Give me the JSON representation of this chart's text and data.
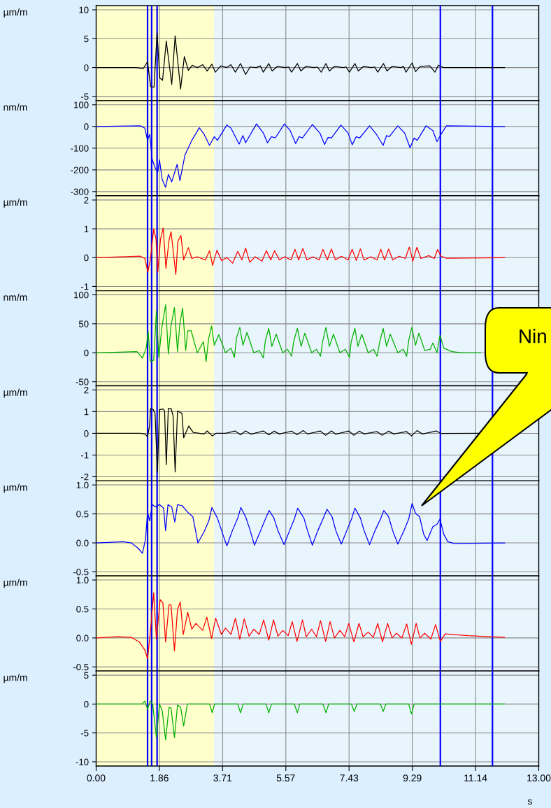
{
  "chart_data": [
    {
      "type": "line",
      "ylabel": "µm/m",
      "xlim": [
        0,
        13
      ],
      "xticks": [
        0,
        1.857,
        3.714,
        5.571,
        7.429,
        9.286,
        11.143,
        13
      ],
      "ylim": [
        -5.73,
        10.73
      ],
      "yticks": [
        10,
        5,
        0,
        -5
      ],
      "grid": true,
      "tick_labels": "y",
      "bands": [
        {
          "axis": "x",
          "from": 0,
          "to": 3.46,
          "color": "#ffffcc"
        }
      ],
      "ref_lines": [
        {
          "axis": "x",
          "value": 1.51,
          "color": "#0000ff"
        },
        {
          "axis": "x",
          "value": 1.63,
          "color": "#0000ff"
        },
        {
          "axis": "x",
          "value": 1.79,
          "color": "#0000ff"
        },
        {
          "axis": "x",
          "value": 10.11,
          "color": "#0000ff"
        },
        {
          "axis": "x",
          "value": 11.64,
          "color": "#0000ff"
        }
      ],
      "series": [
        {
          "color": "#000000",
          "x": [
            0,
            1.18,
            1.38,
            1.51,
            1.6,
            1.7,
            1.79,
            1.87,
            1.95,
            2.06,
            2.22,
            2.32,
            2.48,
            2.59,
            2.71,
            2.82,
            2.97,
            3.13,
            3.26,
            3.4,
            3.5,
            3.66,
            3.84,
            3.96,
            4.09,
            4.24,
            4.39,
            4.52,
            4.7,
            4.82,
            4.91,
            5.07,
            5.17,
            5.32,
            5.55,
            5.65,
            5.74,
            5.91,
            6.01,
            6.16,
            6.4,
            6.5,
            6.61,
            6.75,
            6.85,
            7.0,
            7.25,
            7.34,
            7.44,
            7.6,
            7.7,
            7.85,
            8.08,
            8.18,
            8.27,
            8.44,
            8.54,
            8.69,
            8.95,
            9.03,
            9.1,
            9.28,
            9.38,
            9.52,
            9.8,
            9.95,
            10.05,
            10.2,
            12.0
          ],
          "values": [
            0,
            0,
            -0.2,
            1.0,
            -3.3,
            -3.4,
            6.0,
            -1.8,
            -2.2,
            4.6,
            -2.9,
            5.5,
            -3.7,
            1.9,
            -0.5,
            0.4,
            0,
            0.5,
            -0.6,
            0.6,
            -0.8,
            0.3,
            0,
            0.5,
            -0.8,
            0.7,
            -1.2,
            0.1,
            0,
            0.3,
            -0.8,
            0.7,
            -0.6,
            0.2,
            0,
            0.1,
            -0.8,
            0.7,
            -0.6,
            0.2,
            0,
            0.1,
            -0.8,
            0.7,
            -0.6,
            0.2,
            0,
            0.1,
            -0.8,
            0.7,
            -0.6,
            0.2,
            0,
            0.1,
            -0.8,
            0.7,
            -0.6,
            0.2,
            0,
            0.2,
            -0.8,
            0.8,
            -0.7,
            0.2,
            0.3,
            -0.8,
            0.4,
            0,
            0
          ]
        }
      ]
    },
    {
      "type": "line",
      "ylabel": "nm/m",
      "xlim": [
        0,
        13
      ],
      "xticks": [
        0,
        1.857,
        3.714,
        5.571,
        7.429,
        9.286,
        11.143,
        13
      ],
      "ylim": [
        -319,
        119
      ],
      "yticks": [
        100,
        0,
        -100,
        -200,
        -300
      ],
      "grid": true,
      "tick_labels": "y",
      "bands": [
        {
          "axis": "x",
          "from": 0,
          "to": 3.46,
          "color": "#ffffcc"
        }
      ],
      "ref_lines": [
        {
          "axis": "x",
          "value": 1.51,
          "color": "#0000ff"
        },
        {
          "axis": "x",
          "value": 1.63,
          "color": "#0000ff"
        },
        {
          "axis": "x",
          "value": 1.79,
          "color": "#0000ff"
        },
        {
          "axis": "x",
          "value": 10.11,
          "color": "#0000ff"
        },
        {
          "axis": "x",
          "value": 11.64,
          "color": "#0000ff"
        }
      ],
      "series": [
        {
          "color": "#0000ff",
          "x": [
            0,
            1.3,
            1.43,
            1.51,
            1.57,
            1.65,
            1.74,
            1.81,
            1.86,
            1.94,
            2.04,
            2.12,
            2.22,
            2.38,
            2.46,
            2.61,
            2.81,
            3.03,
            3.17,
            3.33,
            3.47,
            3.56,
            3.84,
            3.96,
            4.2,
            4.31,
            4.39,
            4.71,
            4.91,
            5.03,
            5.15,
            5.26,
            5.53,
            5.7,
            5.86,
            5.96,
            6.06,
            6.35,
            6.57,
            6.71,
            6.81,
            6.91,
            7.19,
            7.4,
            7.52,
            7.64,
            7.74,
            8.03,
            8.23,
            8.43,
            8.53,
            8.61,
            8.86,
            9.06,
            9.22,
            9.34,
            9.43,
            9.69,
            9.89,
            10.01,
            10.13,
            10.29,
            12.0
          ],
          "values": [
            0,
            3,
            -8,
            -64,
            -36,
            -154,
            -193,
            -210,
            -154,
            -244,
            -280,
            -221,
            -255,
            -174,
            -250,
            -131,
            -64,
            -6,
            -36,
            -87,
            -47,
            -64,
            7,
            -8,
            -81,
            -42,
            -75,
            12,
            -30,
            -75,
            -47,
            -53,
            12,
            -19,
            -79,
            -47,
            -53,
            9,
            -30,
            -83,
            -51,
            -53,
            6,
            -30,
            -84,
            -47,
            -53,
            3,
            -36,
            -87,
            -42,
            -47,
            3,
            -30,
            -98,
            -53,
            -64,
            3,
            -19,
            -70,
            -36,
            3,
            0
          ]
        }
      ]
    },
    {
      "type": "line",
      "ylabel": "µm/m",
      "xlim": [
        0,
        13
      ],
      "xticks": [
        0,
        1.857,
        3.714,
        5.571,
        7.429,
        9.286,
        11.143,
        13
      ],
      "ylim": [
        -1.15,
        2.15
      ],
      "yticks": [
        2,
        1,
        0,
        -1
      ],
      "grid": true,
      "tick_labels": "y",
      "bands": [
        {
          "axis": "x",
          "from": 0,
          "to": 3.46,
          "color": "#ffffcc"
        }
      ],
      "ref_lines": [
        {
          "axis": "x",
          "value": 1.51,
          "color": "#0000ff"
        },
        {
          "axis": "x",
          "value": 1.63,
          "color": "#0000ff"
        },
        {
          "axis": "x",
          "value": 1.79,
          "color": "#0000ff"
        },
        {
          "axis": "x",
          "value": 10.11,
          "color": "#0000ff"
        },
        {
          "axis": "x",
          "value": 11.64,
          "color": "#0000ff"
        }
      ],
      "series": [
        {
          "color": "#ff0000",
          "x": [
            0,
            1.3,
            1.43,
            1.52,
            1.6,
            1.69,
            1.76,
            1.81,
            1.89,
            1.97,
            2.05,
            2.14,
            2.2,
            2.34,
            2.4,
            2.49,
            2.57,
            2.71,
            2.81,
            2.97,
            3.21,
            3.33,
            3.42,
            3.55,
            3.68,
            3.84,
            4.01,
            4.16,
            4.28,
            4.39,
            4.51,
            4.67,
            4.87,
            5.0,
            5.13,
            5.24,
            5.38,
            5.54,
            5.72,
            5.84,
            5.95,
            6.07,
            6.19,
            6.37,
            6.55,
            6.66,
            6.79,
            6.91,
            7.03,
            7.2,
            7.4,
            7.52,
            7.64,
            7.76,
            7.87,
            8.07,
            8.25,
            8.36,
            8.47,
            8.59,
            8.71,
            8.9,
            9.08,
            9.2,
            9.3,
            9.42,
            9.54,
            9.77,
            9.93,
            10.03,
            10.13,
            10.29,
            12.0
          ],
          "values": [
            0,
            0.05,
            -0.03,
            -0.5,
            0,
            1.0,
            0.64,
            -0.5,
            0.64,
            1.03,
            -0.37,
            0.6,
            0.9,
            -0.58,
            0.56,
            0.77,
            -0.08,
            0.35,
            -0.03,
            0.03,
            -0.08,
            0.24,
            -0.27,
            0.26,
            -0.1,
            0,
            -0.19,
            0.22,
            -0.08,
            0.33,
            -0.16,
            0.03,
            -0.12,
            0.24,
            -0.08,
            0.24,
            -0.08,
            0.03,
            -0.08,
            0.29,
            -0.08,
            0.32,
            -0.08,
            0.03,
            -0.08,
            0.29,
            -0.08,
            0.3,
            -0.08,
            0.05,
            -0.08,
            0.29,
            -0.1,
            0.3,
            -0.08,
            0.03,
            -0.08,
            0.29,
            -0.08,
            0.3,
            -0.08,
            0.05,
            -0.03,
            0.37,
            -0.12,
            0.36,
            -0.03,
            0.07,
            -0.03,
            0.28,
            0.05,
            -0.02,
            0
          ]
        }
      ]
    },
    {
      "type": "line",
      "ylabel": "nm/m",
      "xlim": [
        0,
        13
      ],
      "xticks": [
        0,
        1.857,
        3.714,
        5.571,
        7.429,
        9.286,
        11.143,
        13
      ],
      "ylim": [
        -57,
        107
      ],
      "yticks": [
        100,
        50,
        0,
        -50
      ],
      "grid": true,
      "tick_labels": "y",
      "bands": [
        {
          "axis": "x",
          "from": 0,
          "to": 3.46,
          "color": "#ffffcc"
        }
      ],
      "ref_lines": [
        {
          "axis": "x",
          "value": 1.51,
          "color": "#0000ff"
        },
        {
          "axis": "x",
          "value": 1.63,
          "color": "#0000ff"
        },
        {
          "axis": "x",
          "value": 1.79,
          "color": "#0000ff"
        },
        {
          "axis": "x",
          "value": 10.11,
          "color": "#0000ff"
        },
        {
          "axis": "x",
          "value": 11.64,
          "color": "#0000ff"
        }
      ],
      "series": [
        {
          "color": "#00b000",
          "x": [
            0,
            1.2,
            1.36,
            1.47,
            1.53,
            1.59,
            1.69,
            1.77,
            1.84,
            1.93,
            2.04,
            2.12,
            2.2,
            2.3,
            2.39,
            2.46,
            2.54,
            2.63,
            2.69,
            2.79,
            2.97,
            3.15,
            3.23,
            3.3,
            3.39,
            3.47,
            3.6,
            3.8,
            3.96,
            4.06,
            4.12,
            4.22,
            4.31,
            4.43,
            4.63,
            4.79,
            4.91,
            4.97,
            5.07,
            5.16,
            5.29,
            5.48,
            5.62,
            5.74,
            5.8,
            5.91,
            6.02,
            6.13,
            6.33,
            6.47,
            6.59,
            6.65,
            6.75,
            6.85,
            6.97,
            7.16,
            7.32,
            7.44,
            7.49,
            7.6,
            7.69,
            7.8,
            7.99,
            8.15,
            8.25,
            8.33,
            8.43,
            8.53,
            8.64,
            8.86,
            9.02,
            9.12,
            9.18,
            9.27,
            9.38,
            9.48,
            9.65,
            9.81,
            9.89,
            10.01,
            10.1,
            10.21,
            10.45,
            10.76,
            11.3
          ],
          "values": [
            0,
            2,
            -9,
            8,
            36,
            -15,
            -13,
            72,
            -8,
            44,
            83,
            -2,
            47,
            78,
            2,
            51,
            77,
            4,
            38,
            38,
            0,
            19,
            -15,
            23,
            46,
            13,
            31,
            0,
            8,
            -8,
            25,
            44,
            13,
            35,
            0,
            4,
            -9,
            21,
            42,
            11,
            32,
            0,
            6,
            -6,
            19,
            42,
            11,
            34,
            0,
            6,
            -6,
            19,
            44,
            11,
            32,
            0,
            6,
            -8,
            19,
            42,
            11,
            32,
            0,
            6,
            -6,
            19,
            42,
            11,
            32,
            0,
            6,
            -6,
            21,
            44,
            13,
            34,
            4,
            6,
            17,
            0,
            30,
            8,
            2,
            0,
            0
          ]
        }
      ]
    },
    {
      "type": "line",
      "ylabel": "µm/m",
      "xlim": [
        0,
        13
      ],
      "xticks": [
        0,
        1.857,
        3.714,
        5.571,
        7.429,
        9.286,
        11.143,
        13
      ],
      "ylim": [
        -2.19,
        2.19
      ],
      "yticks": [
        2,
        1,
        0,
        -1,
        -2
      ],
      "grid": true,
      "tick_labels": "y",
      "bands": [
        {
          "axis": "x",
          "from": 0,
          "to": 3.46,
          "color": "#ffffcc"
        }
      ],
      "ref_lines": [
        {
          "axis": "x",
          "value": 1.51,
          "color": "#0000ff"
        },
        {
          "axis": "x",
          "value": 1.63,
          "color": "#0000ff"
        },
        {
          "axis": "x",
          "value": 1.79,
          "color": "#0000ff"
        },
        {
          "axis": "x",
          "value": 10.11,
          "color": "#0000ff"
        },
        {
          "axis": "x",
          "value": 11.64,
          "color": "#0000ff"
        }
      ],
      "series": [
        {
          "color": "#000000",
          "x": [
            0,
            1.3,
            1.43,
            1.51,
            1.57,
            1.6,
            1.68,
            1.73,
            1.8,
            1.86,
            1.97,
            2.01,
            2.06,
            2.12,
            2.2,
            2.26,
            2.32,
            2.39,
            2.52,
            2.57,
            2.72,
            2.85,
            3.17,
            3.26,
            3.41,
            3.52,
            3.8,
            4.08,
            4.24,
            4.39,
            4.55,
            4.91,
            5.07,
            5.23,
            5.38,
            5.74,
            5.9,
            6.08,
            6.21,
            6.58,
            6.74,
            6.91,
            7.04,
            7.42,
            7.57,
            7.73,
            7.87,
            8.25,
            8.4,
            8.59,
            8.74,
            9.12,
            9.26,
            9.43,
            9.58,
            9.99,
            10.13,
            11.3
          ],
          "values": [
            0,
            0,
            -0.03,
            -0.15,
            0.36,
            1.15,
            1.09,
            0.92,
            -1.78,
            1.09,
            1.12,
            1.03,
            -1.44,
            1.15,
            1.15,
            0.81,
            -1.78,
            1.03,
            0.92,
            -0.2,
            0.34,
            0.04,
            -0.03,
            0.11,
            -0.12,
            0,
            0,
            0.11,
            -0.07,
            0.11,
            -0.04,
            0.11,
            -0.07,
            0.1,
            -0.03,
            0.1,
            -0.06,
            0.13,
            -0.03,
            0.11,
            -0.09,
            0.11,
            -0.04,
            0.11,
            -0.09,
            0.1,
            -0.03,
            0.08,
            -0.09,
            0.1,
            -0.03,
            0.08,
            -0.12,
            0.13,
            -0.03,
            0.11,
            -0.01,
            0
          ]
        }
      ]
    },
    {
      "type": "line",
      "ylabel": "µm/m",
      "xlim": [
        0,
        13
      ],
      "xticks": [
        0,
        1.857,
        3.714,
        5.571,
        7.429,
        9.286,
        11.143,
        13
      ],
      "ylim": [
        -0.57,
        1.07
      ],
      "yticks": [
        {
          "value": 1.0,
          "label": "1.0"
        },
        {
          "value": 0.5,
          "label": "0.5"
        },
        {
          "value": 0,
          "label": "0.0"
        },
        {
          "value": -0.5,
          "label": "-0.5"
        }
      ],
      "grid": true,
      "tick_labels": "y",
      "bands": [
        {
          "axis": "x",
          "from": 0,
          "to": 3.46,
          "color": "#ffffcc"
        }
      ],
      "ref_lines": [
        {
          "axis": "x",
          "value": 1.51,
          "color": "#0000ff"
        },
        {
          "axis": "x",
          "value": 1.63,
          "color": "#0000ff"
        },
        {
          "axis": "x",
          "value": 1.79,
          "color": "#0000ff"
        },
        {
          "axis": "x",
          "value": 10.11,
          "color": "#0000ff"
        },
        {
          "axis": "x",
          "value": 11.64,
          "color": "#0000ff"
        }
      ],
      "annotations": [
        "Nin"
      ],
      "series": [
        {
          "color": "#0000ff",
          "x": [
            0,
            0.8,
            1.03,
            1.23,
            1.36,
            1.45,
            1.51,
            1.57,
            1.65,
            1.74,
            1.86,
            1.98,
            2.04,
            2.11,
            2.22,
            2.31,
            2.39,
            2.53,
            2.69,
            2.84,
            2.99,
            3.17,
            3.31,
            3.4,
            3.56,
            3.72,
            3.84,
            4.0,
            4.16,
            4.25,
            4.39,
            4.51,
            4.65,
            4.83,
            4.97,
            5.08,
            5.22,
            5.34,
            5.52,
            5.68,
            5.82,
            5.92,
            6.1,
            6.21,
            6.35,
            6.51,
            6.66,
            6.78,
            6.93,
            7.04,
            7.2,
            7.36,
            7.5,
            7.6,
            7.76,
            7.87,
            8.03,
            8.19,
            8.35,
            8.45,
            8.59,
            8.71,
            8.86,
            9.04,
            9.18,
            9.28,
            9.38,
            9.5,
            9.62,
            9.72,
            9.89,
            10.01,
            10.1,
            10.21,
            10.33,
            10.52,
            12.0
          ],
          "values": [
            0,
            0.02,
            0,
            -0.09,
            -0.18,
            0.06,
            0.53,
            0.38,
            0.66,
            0.62,
            0.66,
            0.6,
            0.21,
            0.66,
            0.62,
            0.36,
            0.66,
            0.64,
            0.53,
            0.45,
            0,
            0.19,
            0.38,
            0.61,
            0.43,
            0.15,
            -0.05,
            0.21,
            0.43,
            0.61,
            0.45,
            0.24,
            -0.04,
            0.21,
            0.41,
            0.56,
            0.43,
            0.21,
            -0.03,
            0.21,
            0.41,
            0.6,
            0.43,
            0.21,
            -0.04,
            0.21,
            0.41,
            0.58,
            0.45,
            0.21,
            -0.02,
            0.21,
            0.41,
            0.6,
            0.43,
            0.21,
            -0.03,
            0.21,
            0.41,
            0.56,
            0.45,
            0.21,
            -0.02,
            0.21,
            0.41,
            0.68,
            0.51,
            0.45,
            0.15,
            0.04,
            0.28,
            0.32,
            0.41,
            0.15,
            0.02,
            -0.01,
            0
          ]
        }
      ]
    },
    {
      "type": "line",
      "ylabel": "µm/m",
      "xlim": [
        0,
        13
      ],
      "xticks": [
        0,
        1.857,
        3.714,
        5.571,
        7.429,
        9.286,
        11.143,
        13
      ],
      "ylim": [
        -0.57,
        1.07
      ],
      "yticks": [
        {
          "value": 1.0,
          "label": "1.0"
        },
        {
          "value": 0.5,
          "label": "0.5"
        },
        {
          "value": 0,
          "label": "0.0"
        },
        {
          "value": -0.5,
          "label": "-0.5"
        }
      ],
      "grid": true,
      "tick_labels": "y",
      "bands": [
        {
          "axis": "x",
          "from": 0,
          "to": 3.46,
          "color": "#ffffcc"
        }
      ],
      "ref_lines": [
        {
          "axis": "x",
          "value": 1.51,
          "color": "#0000ff"
        },
        {
          "axis": "x",
          "value": 1.63,
          "color": "#0000ff"
        },
        {
          "axis": "x",
          "value": 1.79,
          "color": "#0000ff"
        },
        {
          "axis": "x",
          "value": 10.11,
          "color": "#0000ff"
        },
        {
          "axis": "x",
          "value": 11.64,
          "color": "#0000ff"
        }
      ],
      "series": [
        {
          "color": "#ff0000",
          "x": [
            0,
            0.64,
            1.03,
            1.27,
            1.43,
            1.51,
            1.6,
            1.69,
            1.77,
            1.88,
            1.96,
            2.04,
            2.14,
            2.2,
            2.3,
            2.39,
            2.47,
            2.56,
            2.69,
            2.81,
            2.93,
            3.13,
            3.25,
            3.39,
            3.51,
            3.68,
            3.8,
            3.96,
            4.09,
            4.22,
            4.35,
            4.49,
            4.63,
            4.79,
            4.92,
            5.07,
            5.21,
            5.34,
            5.48,
            5.64,
            5.76,
            5.9,
            6.06,
            6.17,
            6.33,
            6.47,
            6.59,
            6.74,
            6.87,
            7.0,
            7.16,
            7.3,
            7.42,
            7.57,
            7.72,
            7.84,
            7.99,
            8.14,
            8.27,
            8.41,
            8.56,
            8.69,
            8.82,
            8.98,
            9.12,
            9.26,
            9.4,
            9.51,
            9.65,
            9.83,
            9.97,
            10.11,
            10.25,
            10.92,
            12.0
          ],
          "values": [
            0,
            0.02,
            0.01,
            -0.07,
            -0.21,
            -0.36,
            0.15,
            0.78,
            -0.02,
            0.66,
            0.61,
            -0.07,
            0.57,
            0.57,
            -0.22,
            0.49,
            0.62,
            0.06,
            0.44,
            0.15,
            0.25,
            0.13,
            0.36,
            -0.01,
            0.34,
            0.06,
            0.17,
            0.06,
            0.34,
            -0.02,
            0.33,
            0.03,
            0.15,
            0.06,
            0.31,
            -0.04,
            0.31,
            0.03,
            0.13,
            0.04,
            0.28,
            -0.06,
            0.31,
            0.02,
            0.15,
            0.02,
            0.3,
            -0.06,
            0.28,
            0,
            0.13,
            0.02,
            0.25,
            -0.07,
            0.25,
            0.02,
            0.1,
            0.01,
            0.25,
            -0.07,
            0.25,
            0,
            0.08,
            0,
            0.24,
            -0.11,
            0.25,
            0,
            0.08,
            -0.02,
            0.23,
            -0.06,
            0.07,
            0.04,
            0.01
          ]
        }
      ]
    },
    {
      "type": "line",
      "ylabel": "µm/m",
      "xlabel": "s",
      "xlim": [
        0,
        13
      ],
      "xticks": [
        {
          "value": 0,
          "label": "0.00"
        },
        {
          "value": 1.857,
          "label": "1.86"
        },
        {
          "value": 3.714,
          "label": "3.71"
        },
        {
          "value": 5.571,
          "label": "5.57"
        },
        {
          "value": 7.429,
          "label": "7.43"
        },
        {
          "value": 9.286,
          "label": "9.29"
        },
        {
          "value": 11.143,
          "label": "11.14"
        },
        {
          "value": 13,
          "label": "13.00"
        }
      ],
      "ylim": [
        -10.73,
        5.73
      ],
      "yticks": [
        5,
        0,
        -5,
        -10
      ],
      "grid": true,
      "bands": [
        {
          "axis": "x",
          "from": 0,
          "to": 3.46,
          "color": "#ffffcc"
        }
      ],
      "ref_lines": [
        {
          "axis": "x",
          "value": 1.51,
          "color": "#0000ff"
        },
        {
          "axis": "x",
          "value": 1.63,
          "color": "#0000ff"
        },
        {
          "axis": "x",
          "value": 1.79,
          "color": "#0000ff"
        },
        {
          "axis": "x",
          "value": 10.11,
          "color": "#0000ff"
        },
        {
          "axis": "x",
          "value": 11.64,
          "color": "#0000ff"
        }
      ],
      "series": [
        {
          "color": "#00b000",
          "x": [
            0,
            1.35,
            1.43,
            1.51,
            1.59,
            1.66,
            1.77,
            1.86,
            1.94,
            2.04,
            2.14,
            2.2,
            2.3,
            2.39,
            2.48,
            2.57,
            2.68,
            3.33,
            3.41,
            3.48,
            4.16,
            4.24,
            4.32,
            4.99,
            5.07,
            5.15,
            5.82,
            5.91,
            5.98,
            6.66,
            6.75,
            6.83,
            7.5,
            7.58,
            7.66,
            8.35,
            8.43,
            8.51,
            9.18,
            9.26,
            9.34,
            12.0
          ],
          "values": [
            0,
            0,
            0.5,
            -0.9,
            0.5,
            0,
            -5.8,
            0,
            -1.1,
            -6.2,
            -0.6,
            -0.7,
            -5.8,
            -0.2,
            -0.5,
            -3.8,
            0,
            0,
            -1.5,
            0,
            0,
            -1.5,
            0,
            0,
            -1.5,
            0,
            0,
            -1.5,
            0,
            0,
            -1.5,
            0,
            0,
            -1.3,
            0,
            0,
            -1.3,
            0,
            0,
            -1.7,
            0,
            0
          ]
        }
      ]
    }
  ]
}
